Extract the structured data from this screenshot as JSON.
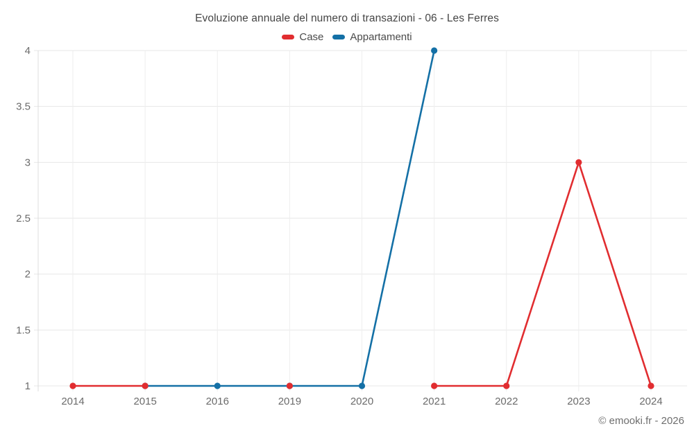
{
  "chart_data": {
    "type": "line",
    "title": "Evoluzione annuale del numero di transazioni - 06 - Les Ferres",
    "categories": [
      "2014",
      "2015",
      "2016",
      "2019",
      "2020",
      "2021",
      "2022",
      "2023",
      "2024"
    ],
    "series": [
      {
        "name": "Case",
        "color": "#e12d30",
        "values": [
          1,
          1,
          null,
          1,
          null,
          1,
          1,
          3,
          1
        ]
      },
      {
        "name": "Appartamenti",
        "color": "#1470a6",
        "values": [
          null,
          1,
          1,
          1,
          1,
          4,
          null,
          null,
          null
        ]
      }
    ],
    "yticks": [
      "1",
      "1.5",
      "2",
      "2.5",
      "3",
      "3.5",
      "4"
    ],
    "ylim": [
      1,
      4
    ],
    "grid": true,
    "legend_position": "top",
    "watermark": "© emooki.fr - 2026"
  }
}
